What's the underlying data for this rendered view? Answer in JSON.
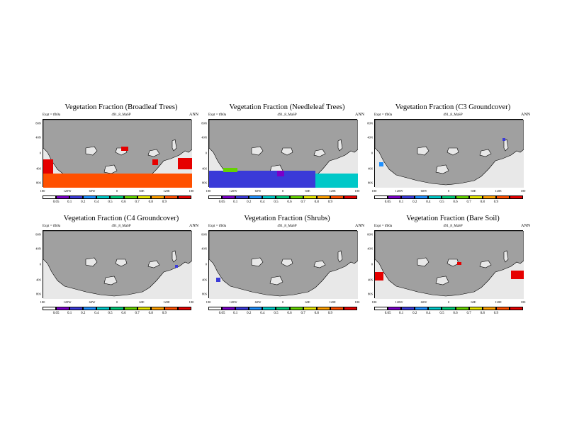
{
  "palette": [
    "#ffffff",
    "#7a00c8",
    "#3a3ad8",
    "#1e90ff",
    "#00c8c8",
    "#00c878",
    "#64d200",
    "#e6e600",
    "#ffa000",
    "#ff5000",
    "#e60000"
  ],
  "land_color": "#a0a0a0",
  "ocean_color": "#e8e8e8",
  "panels": [
    {
      "id": "broadleaf",
      "title": "Vegetation Fraction (Broadleaf Trees)",
      "expt": "Expt = tfb0a",
      "case": "491_8_MaSP",
      "season": "ANN",
      "y_labels": [
        "80N",
        "40N",
        "0",
        "40S",
        "80S"
      ],
      "x_labels": [
        "180",
        "120W",
        "60W",
        "0",
        "60E",
        "120E",
        "180"
      ],
      "cbar_labels": [
        "0.05",
        "0.1",
        "0.2",
        "0.4",
        "0.5",
        "0.6",
        "0.7",
        "0.8",
        "0.9"
      ],
      "fill": "broadleaf"
    },
    {
      "id": "needleleaf",
      "title": "Vegetation Fraction (Needleleaf Trees)",
      "expt": "Expt = tfb0a",
      "case": "491_8_MaSP",
      "season": "ANN",
      "y_labels": [
        "80N",
        "40N",
        "0",
        "40S",
        "80S"
      ],
      "x_labels": [
        "180",
        "120W",
        "60W",
        "0",
        "60E",
        "120E",
        "180"
      ],
      "cbar_labels": [
        "0.05",
        "0.1",
        "0.2",
        "0.4",
        "0.5",
        "0.6",
        "0.7",
        "0.8",
        "0.9"
      ],
      "fill": "needleleaf"
    },
    {
      "id": "c3",
      "title": "Vegetation Fraction (C3 Groundcover)",
      "expt": "Expt = tfb0a",
      "case": "491_8_MaSP",
      "season": "ANN",
      "y_labels": [
        "80N",
        "40N",
        "0",
        "40S",
        "80S"
      ],
      "x_labels": [
        "180",
        "120W",
        "60W",
        "0",
        "60E",
        "120E",
        "180"
      ],
      "cbar_labels": [
        "0.05",
        "0.1",
        "0.2",
        "0.4",
        "0.5",
        "0.6",
        "0.7",
        "0.8",
        "0.9"
      ],
      "fill": "c3"
    },
    {
      "id": "c4",
      "title": "Vegetation Fraction (C4 Groundcover)",
      "expt": "Expt = tfb0a",
      "case": "491_8_MaSP",
      "season": "ANN",
      "y_labels": [
        "80N",
        "40N",
        "0",
        "40S",
        "80S"
      ],
      "x_labels": [
        "180",
        "120W",
        "60W",
        "0",
        "60E",
        "120E",
        "180"
      ],
      "cbar_labels": [
        "0.05",
        "0.1",
        "0.2",
        "0.4",
        "0.5",
        "0.6",
        "0.7",
        "0.8",
        "0.9"
      ],
      "fill": "c4"
    },
    {
      "id": "shrubs",
      "title": "Vegetation Fraction (Shrubs)",
      "expt": "Expt = tfb0a",
      "case": "491_8_MaSP",
      "season": "ANN",
      "y_labels": [
        "80N",
        "40N",
        "0",
        "40S",
        "80S"
      ],
      "x_labels": [
        "180",
        "120W",
        "60W",
        "0",
        "60E",
        "120E",
        "180"
      ],
      "cbar_labels": [
        "0.05",
        "0.1",
        "0.2",
        "0.4",
        "0.5",
        "0.6",
        "0.7",
        "0.8",
        "0.9"
      ],
      "fill": "shrubs"
    },
    {
      "id": "baresoil",
      "title": "Vegetation Fraction (Bare Soil)",
      "expt": "Expt = tfb0a",
      "case": "491_8_MaSP",
      "season": "ANN",
      "y_labels": [
        "80N",
        "40N",
        "0",
        "40S",
        "80S"
      ],
      "x_labels": [
        "180",
        "120W",
        "60W",
        "0",
        "60E",
        "120E",
        "180"
      ],
      "cbar_labels": [
        "0.05",
        "0.1",
        "0.2",
        "0.4",
        "0.5",
        "0.6",
        "0.7",
        "0.8",
        "0.9"
      ],
      "fill": "baresoil"
    }
  ]
}
